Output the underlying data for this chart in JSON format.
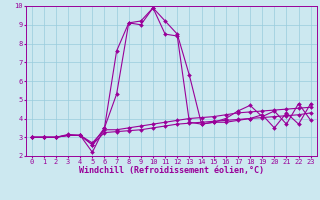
{
  "x": [
    0,
    1,
    2,
    3,
    4,
    5,
    6,
    7,
    8,
    9,
    10,
    11,
    12,
    13,
    14,
    15,
    16,
    17,
    18,
    19,
    20,
    21,
    22,
    23
  ],
  "line1": [
    3.0,
    3.0,
    3.0,
    3.1,
    3.1,
    2.6,
    3.5,
    7.6,
    9.1,
    9.2,
    9.9,
    9.2,
    8.5,
    6.3,
    3.7,
    3.8,
    4.0,
    4.4,
    4.7,
    4.1,
    4.4,
    3.7,
    4.8,
    3.9
  ],
  "line2": [
    3.0,
    3.0,
    3.0,
    3.1,
    3.1,
    2.2,
    3.5,
    5.3,
    9.1,
    9.0,
    9.9,
    8.5,
    8.4,
    3.8,
    3.7,
    3.8,
    3.8,
    3.9,
    4.0,
    4.2,
    3.5,
    4.3,
    3.7,
    4.8
  ],
  "line3": [
    3.0,
    3.0,
    3.0,
    3.15,
    3.1,
    2.7,
    3.4,
    3.4,
    3.5,
    3.6,
    3.7,
    3.8,
    3.9,
    4.0,
    4.05,
    4.1,
    4.2,
    4.3,
    4.35,
    4.4,
    4.45,
    4.5,
    4.55,
    4.6
  ],
  "line4": [
    3.0,
    3.0,
    3.0,
    3.1,
    3.1,
    2.6,
    3.25,
    3.3,
    3.35,
    3.4,
    3.5,
    3.6,
    3.7,
    3.75,
    3.8,
    3.85,
    3.9,
    3.95,
    4.0,
    4.05,
    4.1,
    4.15,
    4.2,
    4.3
  ],
  "color": "#990099",
  "bg_color": "#cce8f0",
  "grid_color": "#99ccdd",
  "xlabel": "Windchill (Refroidissement éolien,°C)",
  "ylim": [
    2,
    10
  ],
  "xlim": [
    -0.5,
    23.5
  ],
  "yticks": [
    2,
    3,
    4,
    5,
    6,
    7,
    8,
    9,
    10
  ],
  "xticks": [
    0,
    1,
    2,
    3,
    4,
    5,
    6,
    7,
    8,
    9,
    10,
    11,
    12,
    13,
    14,
    15,
    16,
    17,
    18,
    19,
    20,
    21,
    22,
    23
  ],
  "marker": "D",
  "markersize": 2.0,
  "linewidth": 0.8,
  "tick_fontsize": 5.0,
  "xlabel_fontsize": 6.0
}
